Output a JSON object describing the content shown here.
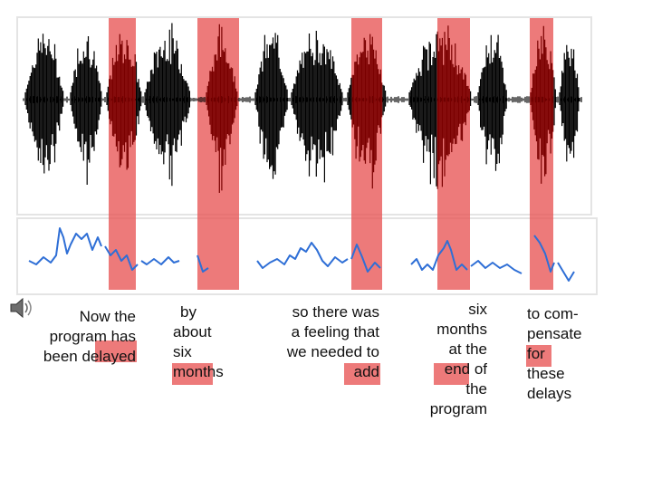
{
  "colors": {
    "highlight": "#e85555",
    "waveform": "#000000",
    "waveform_highlighted": "#7a0000",
    "pitch_track": "#2f6fd6",
    "panel_border": "#e4e4e4"
  },
  "icons": {
    "audio": "speaker-icon"
  },
  "captions": [
    {
      "lines": [
        "Now the",
        "program has",
        "been delayed"
      ],
      "highlight": "layed",
      "align": "right"
    },
    {
      "lines": [
        "by",
        "about",
        "six",
        "months"
      ],
      "highlight": "months",
      "align": "left"
    },
    {
      "lines": [
        "so there was",
        "a feeling that",
        "we needed to",
        "add"
      ],
      "highlight": "add",
      "align": "right"
    },
    {
      "lines": [
        "six",
        "months",
        "at the",
        "end of",
        "the",
        "program"
      ],
      "highlight": "end",
      "align": "right"
    },
    {
      "lines": [
        "to com-",
        "pensate",
        "for",
        "these",
        "delays"
      ],
      "highlight": "for",
      "align": "left"
    }
  ]
}
